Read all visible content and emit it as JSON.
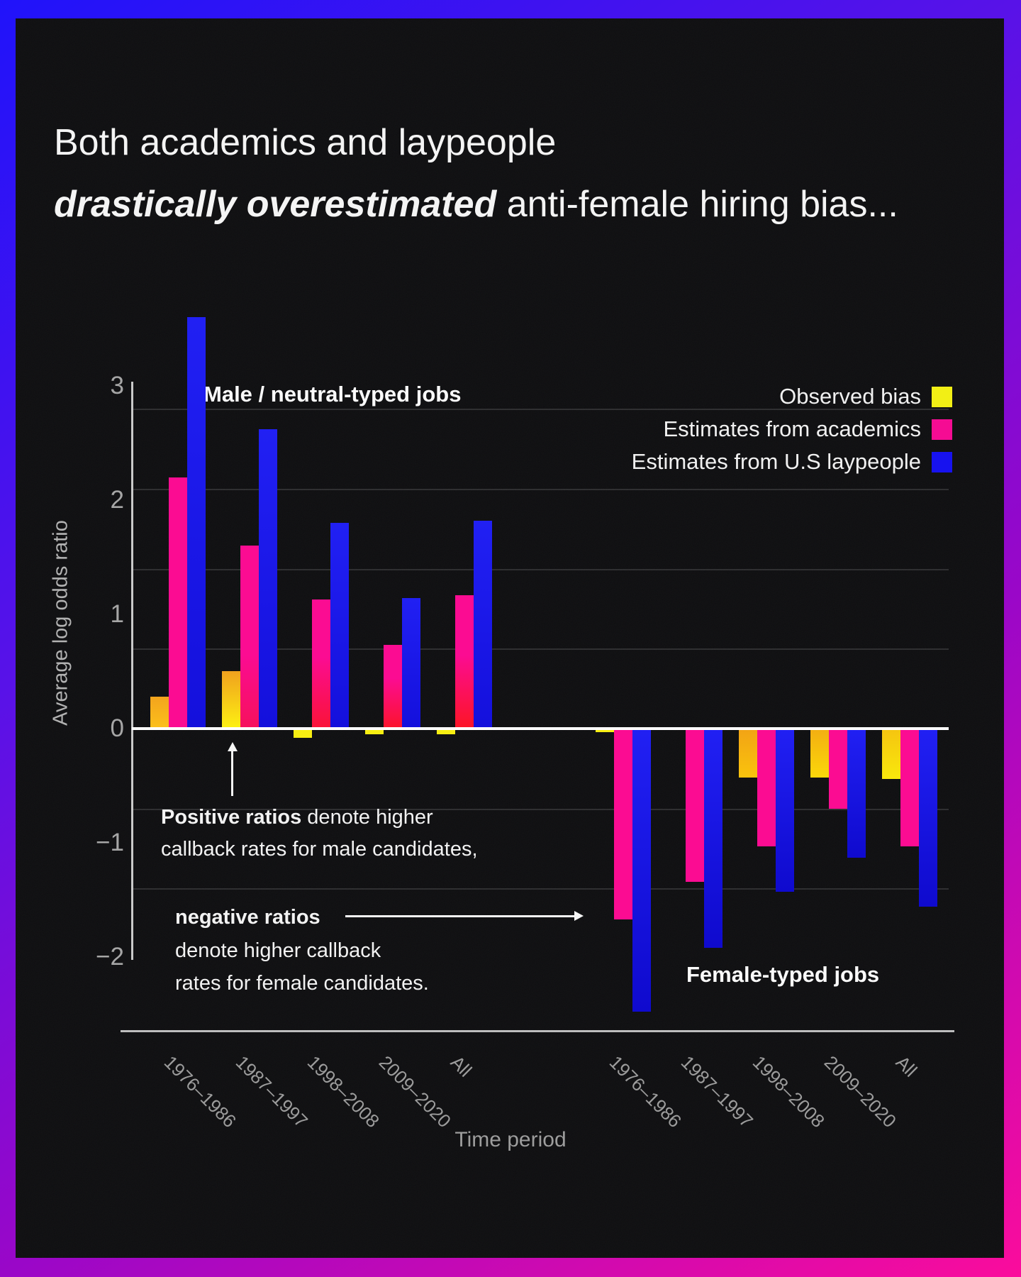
{
  "title": {
    "line1": "Both academics and laypeople",
    "line2_italic": "drastically overestimated",
    "line2_rest": " anti-female hiring bias..."
  },
  "legend": [
    {
      "label": "Observed bias",
      "color": "#f2ef15"
    },
    {
      "label": "Estimates from academics",
      "color": "#f50c93"
    },
    {
      "label": "Estimates from U.S laypeople",
      "color": "#1712ef"
    }
  ],
  "annotations": {
    "positive_bold": "Positive ratios",
    "positive_rest": " denote higher",
    "positive_line2": "callback rates for male candidates,",
    "negative_bold": "negative ratios",
    "negative_line2": "denote higher callback",
    "negative_line3": "rates for female candidates."
  },
  "chart_data": {
    "type": "bar",
    "ylabel": "Average log odds ratio",
    "xlabel": "Time period",
    "ytick_labels": [
      "3",
      "2",
      "1",
      "0",
      "−1",
      "−2"
    ],
    "ytick_values": [
      3,
      2,
      1,
      0,
      -1,
      -2
    ],
    "ylim": [
      -2.7,
      3.7
    ],
    "gridlines_at": [
      2.8,
      2.1,
      1.4,
      0.7,
      -0.7,
      -1.4
    ],
    "categories": [
      "1976–1986",
      "1987–1997",
      "1998–2008",
      "2009–2020",
      "All"
    ],
    "series_names": [
      "Observed bias",
      "Estimates from academics",
      "Estimates from U.S laypeople"
    ],
    "panels": [
      {
        "label": "Male / neutral-typed jobs",
        "series": [
          {
            "name": "Observed bias",
            "values": [
              0.28,
              0.5,
              -0.08,
              -0.05,
              -0.05
            ]
          },
          {
            "name": "Estimates from academics",
            "values": [
              2.2,
              1.6,
              1.13,
              0.73,
              1.17
            ]
          },
          {
            "name": "Estimates from U.S laypeople",
            "values": [
              3.6,
              2.62,
              1.8,
              1.14,
              1.82
            ]
          }
        ]
      },
      {
        "label": "Female-typed jobs",
        "series": [
          {
            "name": "Observed bias",
            "values": [
              -0.03,
              -0.01,
              -0.43,
              -0.43,
              -0.44
            ]
          },
          {
            "name": "Estimates from academics",
            "values": [
              -1.67,
              -1.34,
              -1.03,
              -0.7,
              -1.03
            ]
          },
          {
            "name": "Estimates from U.S laypeople",
            "values": [
              -2.48,
              -1.92,
              -1.43,
              -1.13,
              -1.56
            ]
          }
        ]
      }
    ]
  }
}
